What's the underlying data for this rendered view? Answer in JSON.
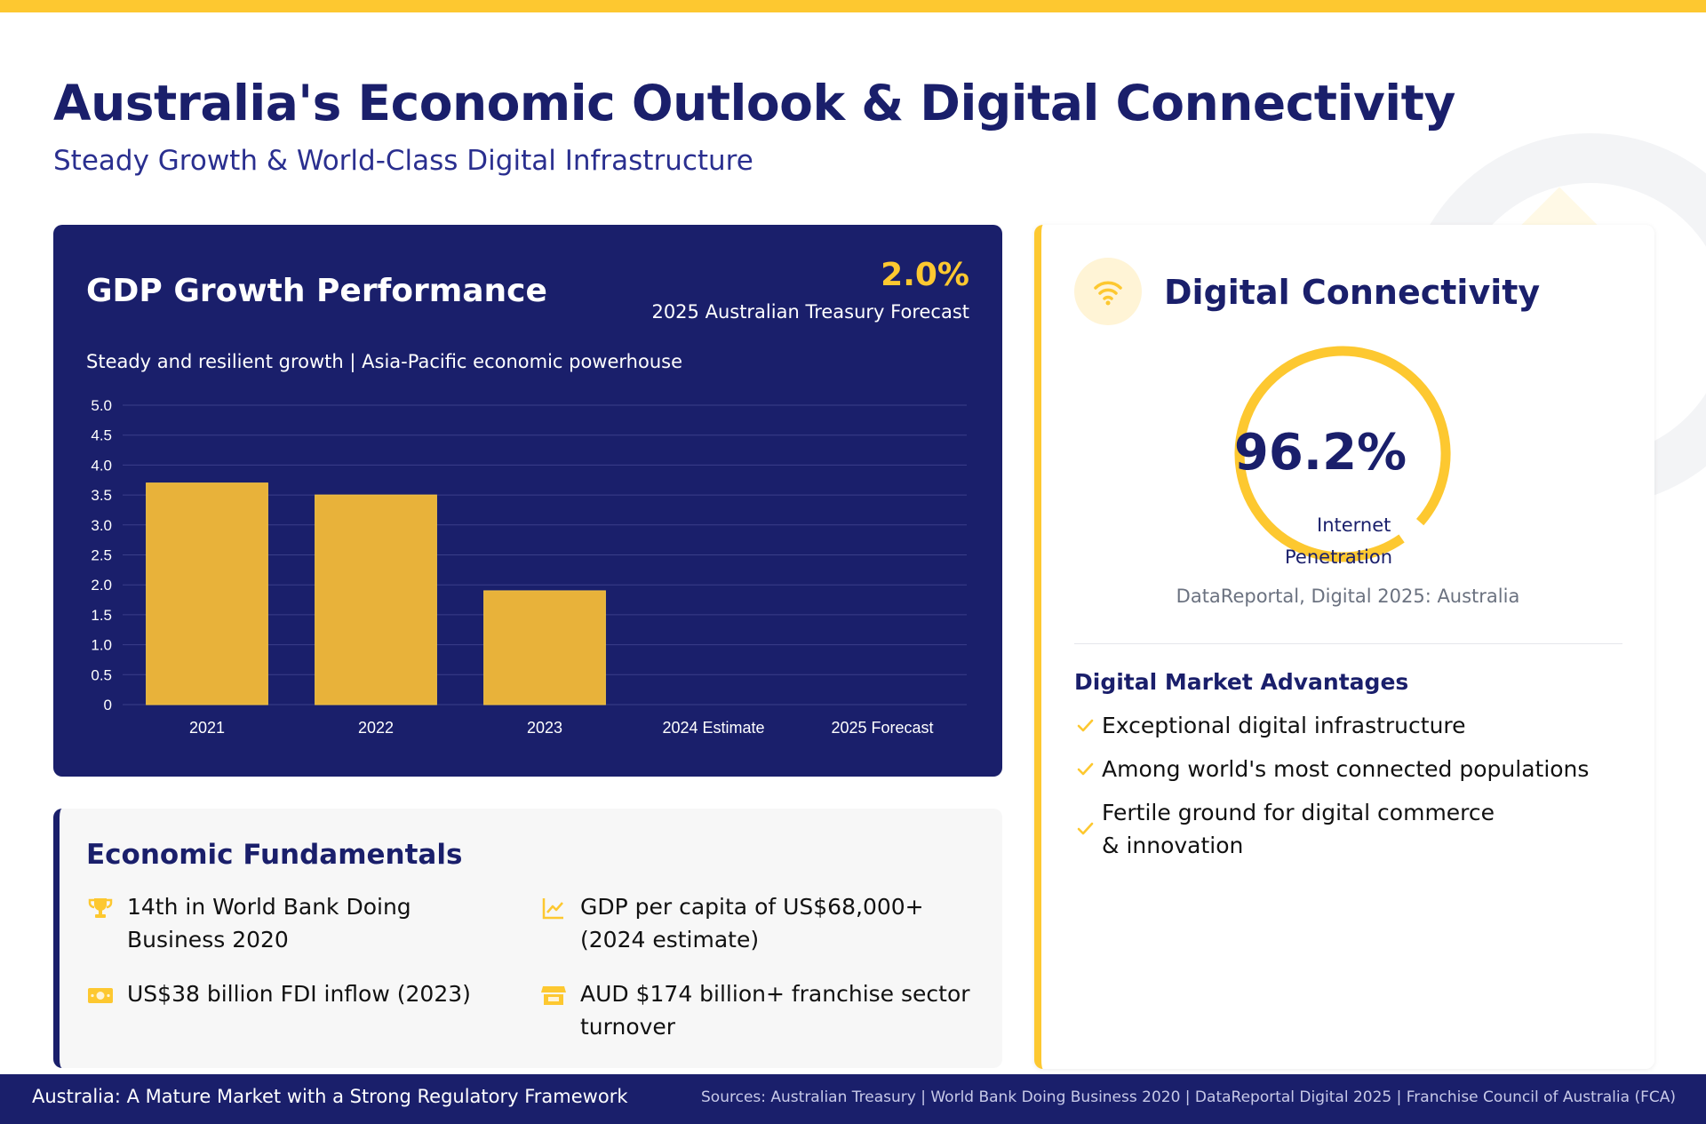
{
  "header": {
    "title": "Australia's Economic Outlook & Digital Connectivity",
    "subtitle": "Steady Growth & World-Class Digital Infrastructure"
  },
  "gdp_card": {
    "title": "GDP Growth Performance",
    "headline_value": "2.0%",
    "headline_label": "2025 Australian Treasury Forecast",
    "description": "Steady and resilient growth | Asia-Pacific economic powerhouse"
  },
  "chart_data": {
    "type": "bar",
    "categories": [
      "2021",
      "2022",
      "2023",
      "2024 Estimate",
      "2025 Forecast"
    ],
    "values": [
      3.7,
      3.5,
      1.9,
      null,
      null
    ],
    "ylim": [
      0,
      5.0
    ],
    "yticks": [
      "0",
      "0.5",
      "1.0",
      "1.5",
      "2.0",
      "2.5",
      "3.0",
      "3.5",
      "4.0",
      "4.5",
      "5.0"
    ],
    "grid": true,
    "bar_color": "#e8b23a"
  },
  "fundamentals": {
    "title": "Economic Fundamentals",
    "items": [
      {
        "icon": "trophy-icon",
        "text": "14th in World Bank Doing Business 2020"
      },
      {
        "icon": "chart-line-icon",
        "text": "GDP per capita of US$68,000+ (2024 estimate)"
      },
      {
        "icon": "money-bill-icon",
        "text": "US$38 billion FDI inflow (2023)"
      },
      {
        "icon": "store-icon",
        "text": "AUD $174 billion+ franchise sector turnover"
      }
    ]
  },
  "digital": {
    "title": "Digital Connectivity",
    "icon": "wifi-icon",
    "gauge_value": "96.2%",
    "gauge_fraction": 0.962,
    "gauge_label_line1": "Internet",
    "gauge_label_line2": "Penetration",
    "source": "DataReportal, Digital 2025: Australia",
    "advantages_title": "Digital Market Advantages",
    "advantages": [
      "Exceptional digital infrastructure",
      "Among world's most connected populations",
      "Fertile ground for digital commerce & innovation"
    ]
  },
  "footer": {
    "left": "Australia: A Mature Market with a Strong Regulatory Framework",
    "right": "Sources: Australian Treasury | World Bank Doing Business 2020 | DataReportal Digital 2025 | Franchise Council of Australia (FCA)"
  },
  "colors": {
    "navy": "#1a1f6b",
    "accent": "#fdc830",
    "bar": "#e8b23a"
  }
}
